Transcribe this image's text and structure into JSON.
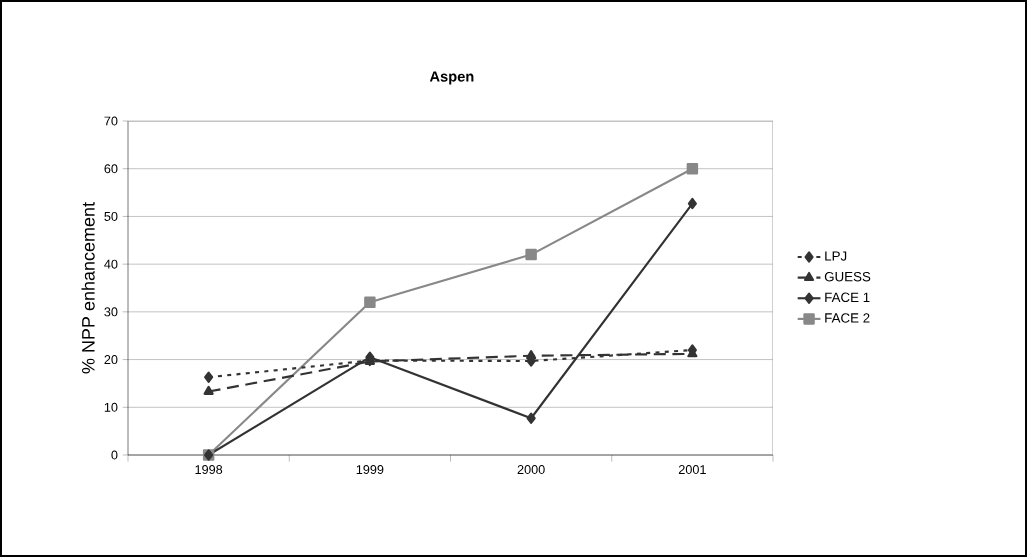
{
  "chart_data": {
    "type": "line",
    "title": "Aspen",
    "ylabel": "% NPP enhancement",
    "categories": [
      "1998",
      "1999",
      "2000",
      "2001"
    ],
    "series": [
      {
        "name": "LPJ",
        "color": "#333333",
        "values": [
          16.3,
          19.8,
          19.7,
          22
        ],
        "marker": "diamond",
        "line_style": "dotted"
      },
      {
        "name": "GUESS",
        "color": "#333333",
        "values": [
          13.3,
          19.6,
          20.8,
          21.2
        ],
        "marker": "triangle",
        "line_style": "dashed"
      },
      {
        "name": "FACE 1",
        "color": "#333333",
        "values": [
          0,
          20.5,
          7.7,
          52.7
        ],
        "marker": "diamond",
        "line_style": "solid"
      },
      {
        "name": "FACE 2",
        "color": "#888888",
        "values": [
          0,
          32,
          42,
          60
        ],
        "marker": "square",
        "line_style": "solid"
      }
    ],
    "ylim": [
      0,
      70
    ],
    "yticks": [
      0,
      10,
      20,
      30,
      40,
      50,
      60,
      70
    ],
    "grid": "y",
    "legend": "right"
  }
}
